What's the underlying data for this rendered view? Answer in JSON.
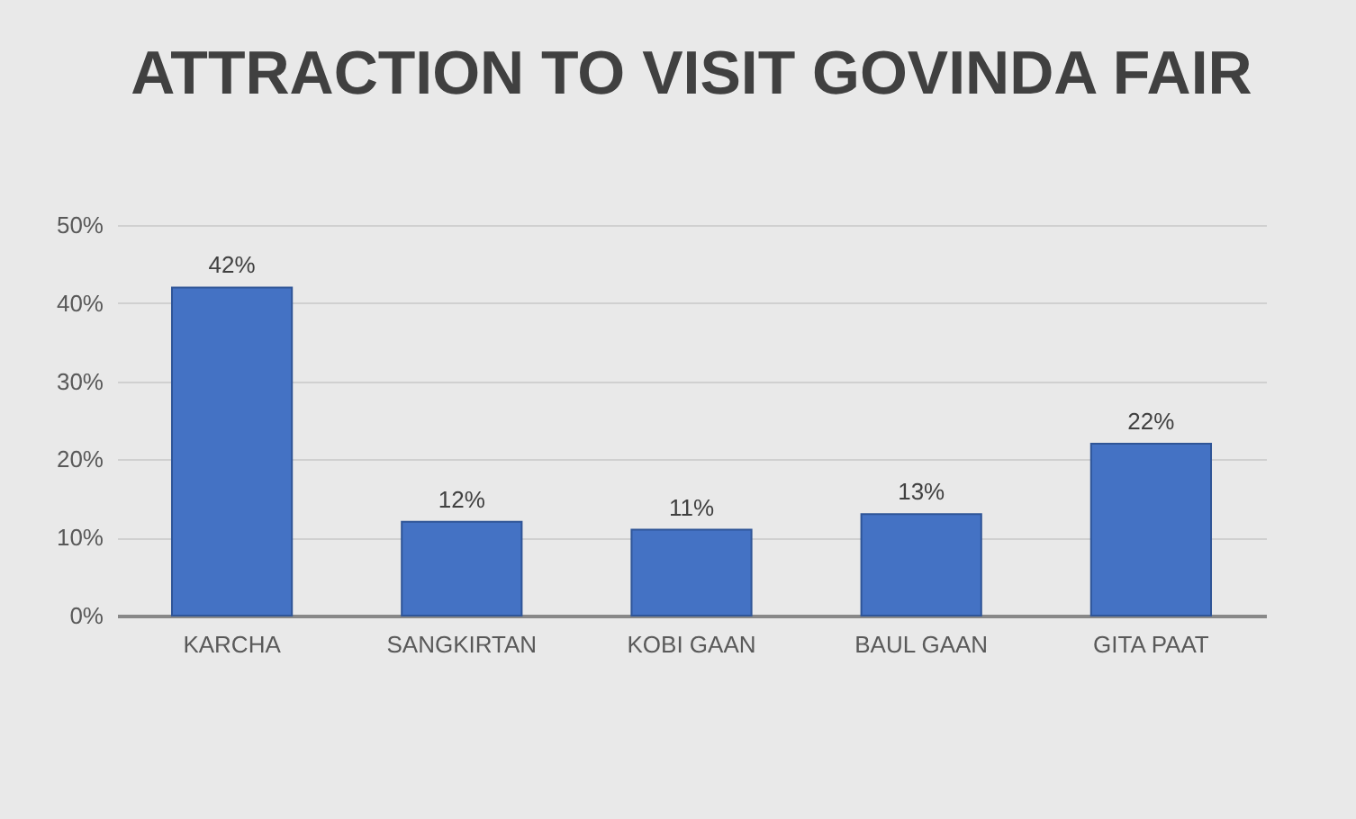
{
  "chart_data": {
    "type": "bar",
    "title": "ATTRACTION TO VISIT GOVINDA FAIR",
    "categories": [
      "KARCHA",
      "SANGKIRTAN",
      "KOBI GAAN",
      "BAUL GAAN",
      "GITA PAAT"
    ],
    "values": [
      42,
      12,
      11,
      13,
      22
    ],
    "value_labels": [
      "42%",
      "12%",
      "11%",
      "13%",
      "22%"
    ],
    "color": "#4472c4",
    "ylim": [
      0,
      50
    ],
    "yticks": [
      {
        "value": 0,
        "label": "0%"
      },
      {
        "value": 10,
        "label": "10%"
      },
      {
        "value": 20,
        "label": "20%"
      },
      {
        "value": 30,
        "label": "30%"
      },
      {
        "value": 40,
        "label": "40%"
      },
      {
        "value": 50,
        "label": "50%"
      }
    ],
    "grid": "y"
  }
}
